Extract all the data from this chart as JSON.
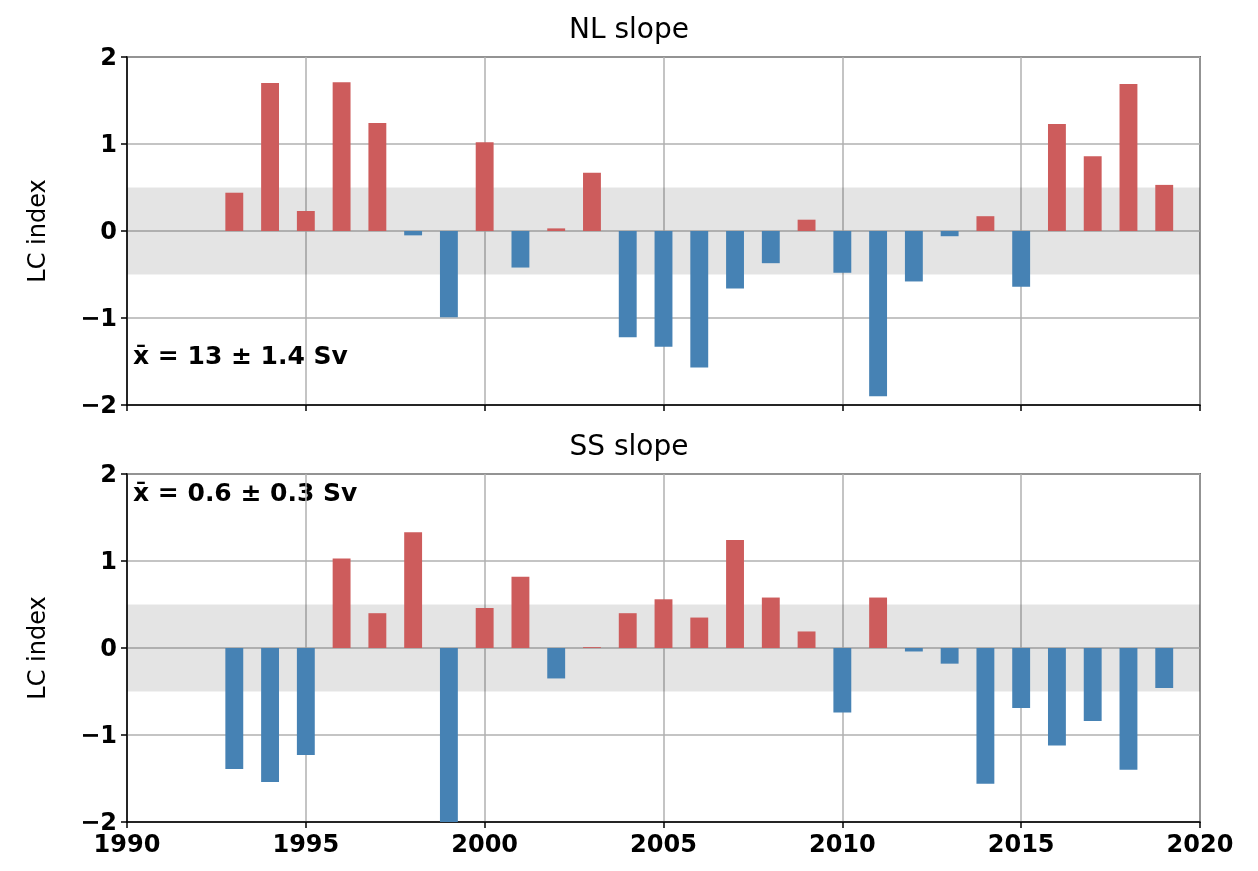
{
  "chart_data": [
    {
      "type": "bar",
      "title": "NL slope",
      "ylabel": "LC index",
      "x": [
        1993,
        1994,
        1995,
        1996,
        1997,
        1998,
        1999,
        2000,
        2001,
        2002,
        2003,
        2004,
        2005,
        2006,
        2007,
        2008,
        2009,
        2010,
        2011,
        2012,
        2013,
        2014,
        2015,
        2016,
        2017,
        2018,
        2019
      ],
      "values": [
        0.44,
        1.7,
        0.23,
        1.71,
        1.24,
        -0.05,
        -0.99,
        1.02,
        -0.42,
        0.03,
        0.67,
        -1.22,
        -1.33,
        -1.57,
        -0.66,
        -0.37,
        0.13,
        -0.48,
        -1.9,
        -0.58,
        -0.06,
        0.17,
        -0.64,
        1.23,
        0.86,
        1.69,
        0.53
      ],
      "colors": [
        "#cd5c5c",
        "#cd5c5c",
        "#cd5c5c",
        "#cd5c5c",
        "#cd5c5c",
        "#4682b4",
        "#4682b4",
        "#cd5c5c",
        "#4682b4",
        "#cd5c5c",
        "#cd5c5c",
        "#4682b4",
        "#4682b4",
        "#4682b4",
        "#4682b4",
        "#4682b4",
        "#cd5c5c",
        "#4682b4",
        "#4682b4",
        "#4682b4",
        "#4682b4",
        "#cd5c5c",
        "#4682b4",
        "#cd5c5c",
        "#cd5c5c",
        "#cd5c5c",
        "#cd5c5c"
      ],
      "xlim": [
        1990,
        2020
      ],
      "xticks": [
        1990,
        1995,
        2000,
        2005,
        2010,
        2015,
        2020
      ],
      "ylim": [
        -2,
        2
      ],
      "yticks": [
        -2,
        -1,
        0,
        1,
        2
      ],
      "bands": [
        {
          "axis": "y",
          "from": -0.5,
          "to": 0.5
        }
      ],
      "annotations": [
        "x̄ = 13 ± 1.4 Sv"
      ],
      "grid": true,
      "tick_labels": "y"
    },
    {
      "type": "bar",
      "title": "SS slope",
      "ylabel": "LC index",
      "x": [
        1993,
        1994,
        1995,
        1996,
        1997,
        1998,
        1999,
        2000,
        2001,
        2002,
        2003,
        2004,
        2005,
        2006,
        2007,
        2008,
        2009,
        2010,
        2011,
        2012,
        2013,
        2014,
        2015,
        2016,
        2017,
        2018,
        2019
      ],
      "values": [
        -1.39,
        -1.54,
        -1.23,
        1.03,
        0.4,
        1.33,
        -2,
        0.46,
        0.82,
        -0.35,
        0.01,
        0.4,
        0.56,
        0.35,
        1.24,
        0.58,
        0.19,
        -0.74,
        0.58,
        -0.04,
        -0.18,
        -1.56,
        -0.69,
        -1.12,
        -0.84,
        -1.4,
        -0.46
      ],
      "colors": [
        "#4682b4",
        "#4682b4",
        "#4682b4",
        "#cd5c5c",
        "#cd5c5c",
        "#cd5c5c",
        "#4682b4",
        "#cd5c5c",
        "#cd5c5c",
        "#4682b4",
        "#cd5c5c",
        "#cd5c5c",
        "#cd5c5c",
        "#cd5c5c",
        "#cd5c5c",
        "#cd5c5c",
        "#cd5c5c",
        "#4682b4",
        "#cd5c5c",
        "#4682b4",
        "#4682b4",
        "#4682b4",
        "#4682b4",
        "#4682b4",
        "#4682b4",
        "#4682b4",
        "#4682b4"
      ],
      "xlim": [
        1990,
        2020
      ],
      "xticks": [
        1990,
        1995,
        2000,
        2005,
        2010,
        2015,
        2020
      ],
      "ylim": [
        -2,
        2
      ],
      "yticks": [
        -2,
        -1,
        0,
        1,
        2
      ],
      "bands": [
        {
          "axis": "y",
          "from": -0.5,
          "to": 0.5
        }
      ],
      "annotations": [
        "x̄ = 0.6 ± 0.3 Sv"
      ],
      "grid": true
    }
  ]
}
